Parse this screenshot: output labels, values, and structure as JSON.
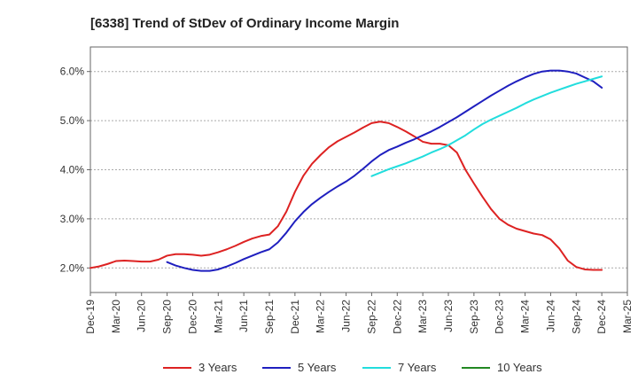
{
  "chart_data": {
    "type": "line",
    "title": "[6338]  Trend of StDev of Ordinary Income Margin",
    "xlabel": "",
    "ylabel": "",
    "x_ticks": [
      "Dec-19",
      "Mar-20",
      "Jun-20",
      "Sep-20",
      "Dec-20",
      "Mar-21",
      "Jun-21",
      "Sep-21",
      "Dec-21",
      "Mar-22",
      "Jun-22",
      "Sep-22",
      "Dec-22",
      "Mar-23",
      "Jun-23",
      "Sep-23",
      "Dec-23",
      "Mar-24",
      "Jun-24",
      "Sep-24",
      "Dec-24",
      "Mar-25"
    ],
    "y_ticks": [
      2.0,
      3.0,
      4.0,
      5.0,
      6.0
    ],
    "y_tick_labels": [
      "2.0%",
      "3.0%",
      "4.0%",
      "5.0%",
      "6.0%"
    ],
    "ylim": [
      1.5,
      6.5
    ],
    "grid": "horizontal dashed",
    "legend_position": "bottom",
    "series": [
      {
        "name": "3 Years",
        "color": "#dd2222",
        "x": [
          "Dec-19",
          "Jan-20",
          "Feb-20",
          "Mar-20",
          "Apr-20",
          "May-20",
          "Jun-20",
          "Jul-20",
          "Aug-20",
          "Sep-20",
          "Oct-20",
          "Nov-20",
          "Dec-20",
          "Jan-21",
          "Feb-21",
          "Mar-21",
          "Apr-21",
          "May-21",
          "Jun-21",
          "Jul-21",
          "Aug-21",
          "Sep-21",
          "Oct-21",
          "Nov-21",
          "Dec-21",
          "Jan-22",
          "Feb-22",
          "Mar-22",
          "Apr-22",
          "May-22",
          "Jun-22",
          "Jul-22",
          "Aug-22",
          "Sep-22",
          "Oct-22",
          "Nov-22",
          "Dec-22",
          "Jan-23",
          "Feb-23",
          "Mar-23",
          "Apr-23",
          "May-23",
          "Jun-23",
          "Jul-23",
          "Aug-23",
          "Sep-23",
          "Oct-23",
          "Nov-23",
          "Dec-23",
          "Jan-24",
          "Feb-24",
          "Mar-24",
          "Apr-24",
          "May-24",
          "Jun-24",
          "Jul-24",
          "Aug-24",
          "Sep-24",
          "Oct-24",
          "Nov-24",
          "Dec-24"
        ],
        "values": [
          2.0,
          2.03,
          2.08,
          2.14,
          2.15,
          2.14,
          2.13,
          2.13,
          2.17,
          2.25,
          2.28,
          2.28,
          2.27,
          2.25,
          2.27,
          2.32,
          2.38,
          2.45,
          2.53,
          2.6,
          2.65,
          2.68,
          2.85,
          3.15,
          3.55,
          3.88,
          4.12,
          4.3,
          4.46,
          4.58,
          4.67,
          4.76,
          4.86,
          4.95,
          4.98,
          4.95,
          4.87,
          4.78,
          4.68,
          4.57,
          4.53,
          4.53,
          4.5,
          4.35,
          4.0,
          3.72,
          3.45,
          3.2,
          3.0,
          2.88,
          2.8,
          2.75,
          2.7,
          2.67,
          2.58,
          2.4,
          2.15,
          2.02,
          1.97,
          1.96,
          1.96
        ]
      },
      {
        "name": "5 Years",
        "color": "#1f1fbf",
        "x": [
          "Sep-20",
          "Oct-20",
          "Nov-20",
          "Dec-20",
          "Jan-21",
          "Feb-21",
          "Mar-21",
          "Apr-21",
          "May-21",
          "Jun-21",
          "Jul-21",
          "Aug-21",
          "Sep-21",
          "Oct-21",
          "Nov-21",
          "Dec-21",
          "Jan-22",
          "Feb-22",
          "Mar-22",
          "Apr-22",
          "May-22",
          "Jun-22",
          "Jul-22",
          "Aug-22",
          "Sep-22",
          "Oct-22",
          "Nov-22",
          "Dec-22",
          "Jan-23",
          "Feb-23",
          "Mar-23",
          "Apr-23",
          "May-23",
          "Jun-23",
          "Jul-23",
          "Aug-23",
          "Sep-23",
          "Oct-23",
          "Nov-23",
          "Dec-23",
          "Jan-24",
          "Feb-24",
          "Mar-24",
          "Apr-24",
          "May-24",
          "Jun-24",
          "Jul-24",
          "Aug-24",
          "Sep-24",
          "Oct-24",
          "Nov-24",
          "Dec-24"
        ],
        "values": [
          2.12,
          2.05,
          2.0,
          1.96,
          1.94,
          1.94,
          1.97,
          2.03,
          2.1,
          2.18,
          2.25,
          2.32,
          2.38,
          2.52,
          2.72,
          2.95,
          3.14,
          3.3,
          3.43,
          3.55,
          3.66,
          3.76,
          3.88,
          4.02,
          4.17,
          4.3,
          4.4,
          4.47,
          4.55,
          4.62,
          4.7,
          4.78,
          4.87,
          4.97,
          5.07,
          5.18,
          5.29,
          5.4,
          5.51,
          5.61,
          5.71,
          5.8,
          5.88,
          5.95,
          6.0,
          6.02,
          6.02,
          6.0,
          5.96,
          5.88,
          5.8,
          5.67
        ]
      },
      {
        "name": "7 Years",
        "color": "#22dddd",
        "x": [
          "Sep-22",
          "Oct-22",
          "Nov-22",
          "Dec-22",
          "Jan-23",
          "Feb-23",
          "Mar-23",
          "Apr-23",
          "May-23",
          "Jun-23",
          "Jul-23",
          "Aug-23",
          "Sep-23",
          "Oct-23",
          "Nov-23",
          "Dec-23",
          "Jan-24",
          "Feb-24",
          "Mar-24",
          "Apr-24",
          "May-24",
          "Jun-24",
          "Jul-24",
          "Aug-24",
          "Sep-24",
          "Oct-24",
          "Nov-24",
          "Dec-24"
        ],
        "values": [
          3.87,
          3.94,
          4.01,
          4.07,
          4.13,
          4.2,
          4.27,
          4.35,
          4.42,
          4.5,
          4.6,
          4.7,
          4.82,
          4.93,
          5.02,
          5.1,
          5.18,
          5.26,
          5.35,
          5.43,
          5.5,
          5.57,
          5.63,
          5.69,
          5.75,
          5.8,
          5.85,
          5.9
        ]
      },
      {
        "name": "10 Years",
        "color": "#228822",
        "x": [],
        "values": []
      }
    ]
  }
}
